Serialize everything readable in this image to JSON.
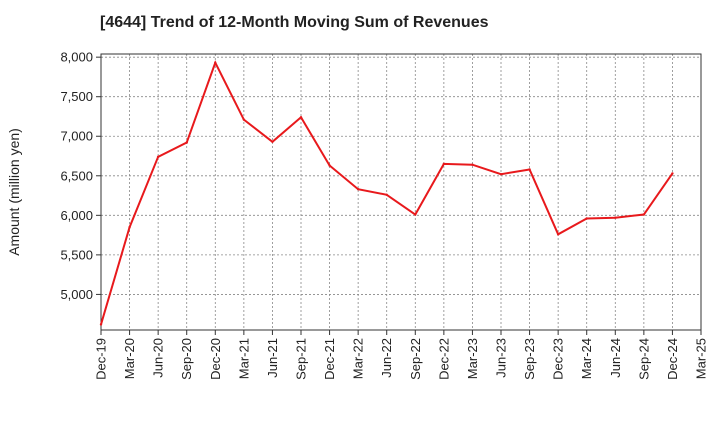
{
  "chart_data": {
    "type": "line",
    "title": "[4644]  Trend of 12-Month Moving Sum of Revenues",
    "xlabel": "",
    "ylabel": "Amount (million yen)",
    "x": [
      "Dec-19",
      "Mar-20",
      "Jun-20",
      "Sep-20",
      "Dec-20",
      "Mar-21",
      "Jun-21",
      "Sep-21",
      "Dec-21",
      "Mar-22",
      "Jun-22",
      "Sep-22",
      "Dec-22",
      "Mar-23",
      "Jun-23",
      "Sep-23",
      "Dec-23",
      "Mar-24",
      "Jun-24",
      "Sep-24",
      "Dec-24",
      "Mar-25"
    ],
    "series": [
      {
        "values": [
          4620,
          5850,
          6740,
          6920,
          7930,
          7210,
          6930,
          7240,
          6630,
          6330,
          6260,
          6010,
          6650,
          6640,
          6520,
          6580,
          5760,
          5960,
          5970,
          6010,
          6530,
          null
        ]
      }
    ],
    "yticks": [
      5000,
      5500,
      6000,
      6500,
      7000,
      7500,
      8000
    ],
    "ytick_labels": [
      "5,000",
      "5,500",
      "6,000",
      "6,500",
      "7,000",
      "7,500",
      "8,000"
    ],
    "ylim": [
      4550,
      8040
    ],
    "grid": true,
    "legend": "none",
    "colors": {
      "line": "#e8191c",
      "grid": "#888888",
      "axis": "#333333"
    }
  }
}
